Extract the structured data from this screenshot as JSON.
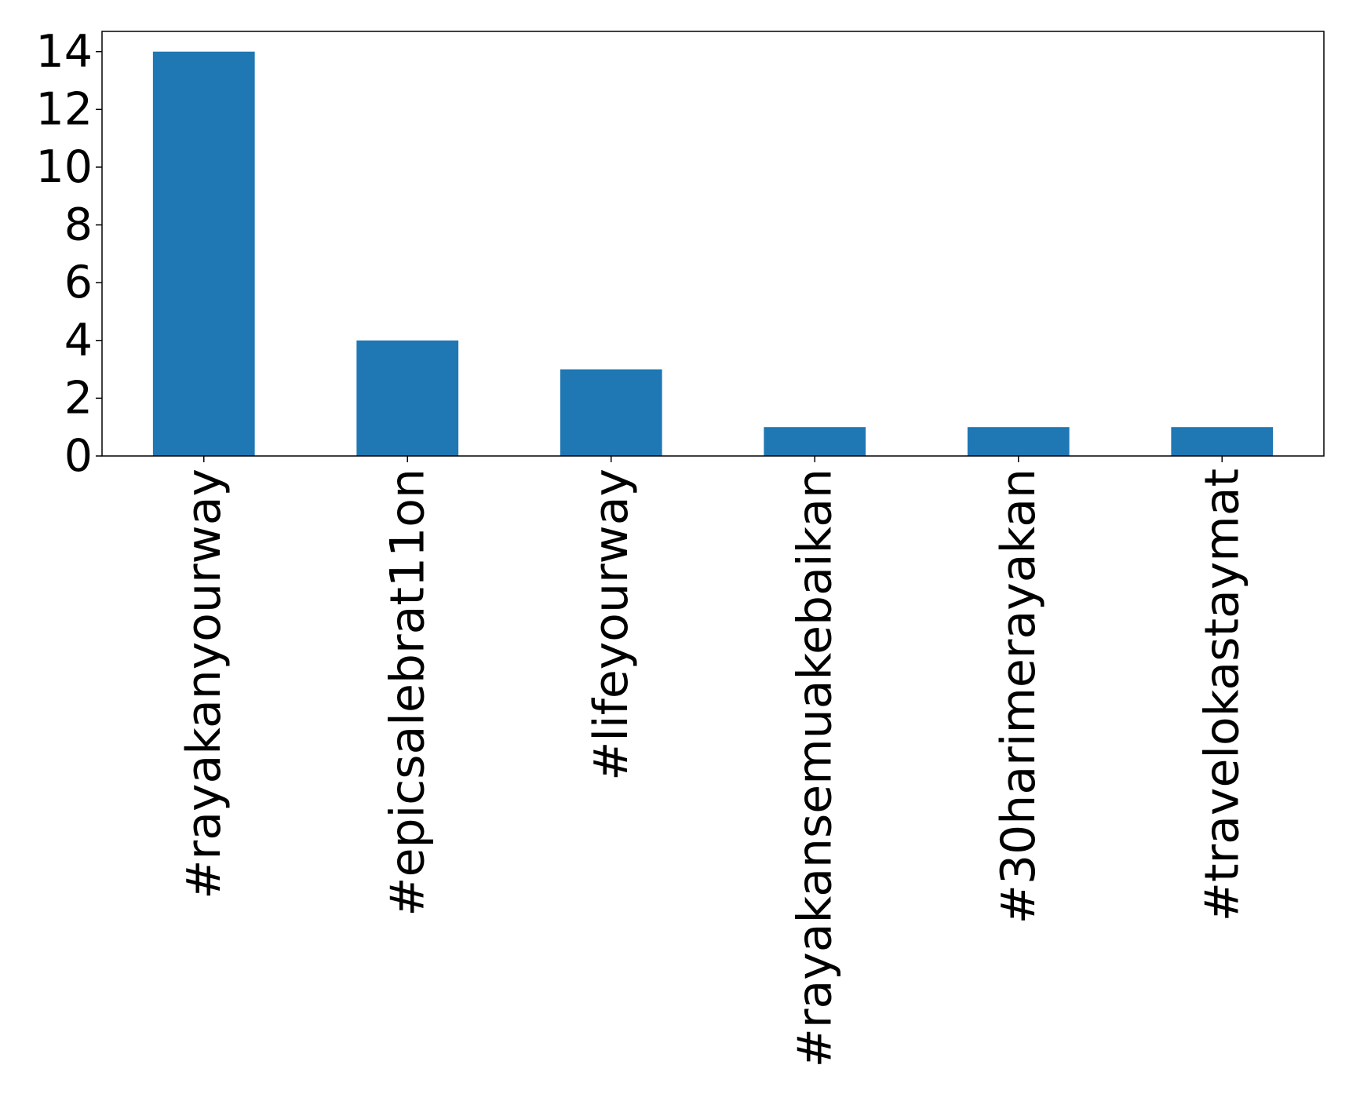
{
  "chart_data": {
    "type": "bar",
    "categories": [
      "#rayakanyourway",
      "#epicsalebrat11on",
      "#lifeyourway",
      "#rayakansemuakebaikan",
      "#30harimerayakan",
      "#travelokastaymat"
    ],
    "values": [
      14,
      4,
      3,
      1,
      1,
      1
    ],
    "color": "#1f77b4",
    "ylim": [
      0,
      14.7
    ],
    "yticks": [
      0,
      2,
      4,
      6,
      8,
      10,
      12,
      14
    ],
    "grid": false
  }
}
